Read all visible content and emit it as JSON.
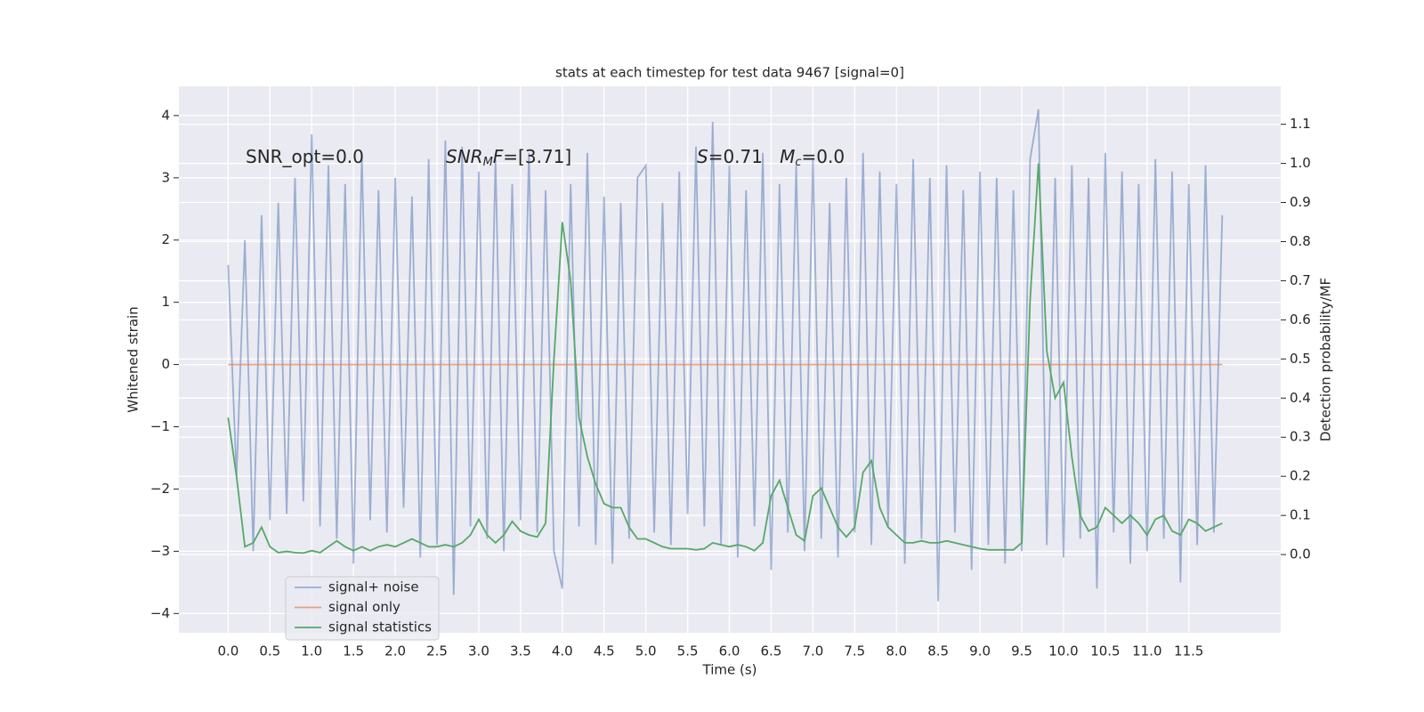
{
  "chart_data": {
    "type": "line",
    "title": "stats at each timestep for test data 9467 [signal=0]",
    "xlabel": "Time (s)",
    "ylabel": "Whitened strain",
    "y2label": "Detection probability/MF",
    "annotations": [
      [
        "SNR_opt=0.0"
      ],
      [
        "SNR",
        "M",
        "F",
        "=[3.71]"
      ],
      [
        "S",
        "=0.71   ",
        "M",
        "c",
        "=0.0"
      ]
    ],
    "x": [
      0.0,
      0.1,
      0.2,
      0.3,
      0.4,
      0.5,
      0.6,
      0.7,
      0.8,
      0.9,
      1.0,
      1.1,
      1.2,
      1.3,
      1.4,
      1.5,
      1.6,
      1.7,
      1.8,
      1.9,
      2.0,
      2.1,
      2.2,
      2.3,
      2.4,
      2.5,
      2.6,
      2.7,
      2.8,
      2.9,
      3.0,
      3.1,
      3.2,
      3.3,
      3.4,
      3.5,
      3.6,
      3.7,
      3.8,
      3.9,
      4.0,
      4.1,
      4.2,
      4.3,
      4.4,
      4.5,
      4.6,
      4.7,
      4.8,
      4.9,
      5.0,
      5.1,
      5.2,
      5.3,
      5.4,
      5.5,
      5.6,
      5.7,
      5.8,
      5.9,
      6.0,
      6.1,
      6.2,
      6.3,
      6.4,
      6.5,
      6.6,
      6.7,
      6.8,
      6.9,
      7.0,
      7.1,
      7.2,
      7.3,
      7.4,
      7.5,
      7.6,
      7.7,
      7.8,
      7.9,
      8.0,
      8.1,
      8.2,
      8.3,
      8.4,
      8.5,
      8.6,
      8.7,
      8.8,
      8.9,
      9.0,
      9.1,
      9.2,
      9.3,
      9.4,
      9.5,
      9.6,
      9.7,
      9.8,
      9.9,
      10.0,
      10.1,
      10.2,
      10.3,
      10.4,
      10.5,
      10.6,
      10.7,
      10.8,
      10.9,
      11.0,
      11.1,
      11.2,
      11.3,
      11.4,
      11.5,
      11.6,
      11.7,
      11.8,
      11.9
    ],
    "series": [
      {
        "name": "signal+ noise",
        "color": "#4c72b0",
        "opacity": 0.5,
        "axis": "y",
        "values": [
          1.6,
          -1.8,
          2.0,
          -3.0,
          2.4,
          -2.5,
          2.6,
          -2.4,
          3.0,
          -2.2,
          3.7,
          -2.6,
          3.2,
          -2.8,
          2.9,
          -3.2,
          3.4,
          -2.5,
          2.8,
          -2.7,
          3.0,
          -2.3,
          2.7,
          -3.1,
          3.3,
          -2.9,
          3.6,
          -3.7,
          3.5,
          -2.6,
          3.1,
          -2.8,
          3.3,
          -3.0,
          2.9,
          -2.5,
          3.4,
          -2.7,
          2.8,
          -3.0,
          -3.6,
          2.9,
          -2.6,
          3.4,
          -2.9,
          2.7,
          -3.2,
          2.6,
          -2.8,
          3.0,
          3.2,
          -2.7,
          2.6,
          -2.9,
          3.1,
          -2.4,
          3.5,
          -2.6,
          3.9,
          -2.9,
          3.2,
          -3.1,
          2.8,
          -2.6,
          3.4,
          -3.3,
          2.9,
          -2.7,
          3.2,
          -3.0,
          3.3,
          -2.8,
          2.6,
          -3.1,
          3.0,
          -2.7,
          3.4,
          -2.9,
          3.1,
          -2.6,
          2.9,
          -3.2,
          3.3,
          -2.8,
          3.0,
          -3.8,
          3.2,
          -2.7,
          2.8,
          -3.3,
          3.1,
          -2.9,
          3.0,
          -3.2,
          2.8,
          -3.0,
          3.3,
          4.1,
          -2.9,
          3.0,
          -3.1,
          3.2,
          -2.8,
          3.0,
          -3.6,
          3.4,
          -2.7,
          3.1,
          -3.2,
          2.9,
          -3.0,
          3.3,
          -2.8,
          3.1,
          -3.5,
          2.9,
          -2.9,
          3.2,
          -2.7,
          2.4
        ]
      },
      {
        "name": "signal only",
        "color": "#dd8452",
        "opacity": 0.7,
        "axis": "y",
        "values": [
          0,
          0,
          0,
          0,
          0,
          0,
          0,
          0,
          0,
          0,
          0,
          0,
          0,
          0,
          0,
          0,
          0,
          0,
          0,
          0,
          0,
          0,
          0,
          0,
          0,
          0,
          0,
          0,
          0,
          0,
          0,
          0,
          0,
          0,
          0,
          0,
          0,
          0,
          0,
          0,
          0,
          0,
          0,
          0,
          0,
          0,
          0,
          0,
          0,
          0,
          0,
          0,
          0,
          0,
          0,
          0,
          0,
          0,
          0,
          0,
          0,
          0,
          0,
          0,
          0,
          0,
          0,
          0,
          0,
          0,
          0,
          0,
          0,
          0,
          0,
          0,
          0,
          0,
          0,
          0,
          0,
          0,
          0,
          0,
          0,
          0,
          0,
          0,
          0,
          0,
          0,
          0,
          0,
          0,
          0,
          0,
          0,
          0,
          0,
          0,
          0,
          0,
          0,
          0,
          0,
          0,
          0,
          0,
          0,
          0,
          0,
          0,
          0,
          0,
          0,
          0,
          0,
          0,
          0,
          0
        ]
      },
      {
        "name": "signal statistics",
        "color": "#55a868",
        "opacity": 1,
        "axis": "y2",
        "values": [
          0.35,
          0.2,
          0.02,
          0.03,
          0.07,
          0.02,
          0.005,
          0.008,
          0.005,
          0.004,
          0.01,
          0.005,
          0.02,
          0.035,
          0.02,
          0.01,
          0.02,
          0.01,
          0.02,
          0.025,
          0.02,
          0.03,
          0.04,
          0.03,
          0.02,
          0.02,
          0.025,
          0.02,
          0.03,
          0.05,
          0.09,
          0.05,
          0.03,
          0.05,
          0.085,
          0.06,
          0.05,
          0.045,
          0.08,
          0.5,
          0.85,
          0.7,
          0.35,
          0.25,
          0.18,
          0.13,
          0.12,
          0.12,
          0.07,
          0.04,
          0.04,
          0.03,
          0.02,
          0.015,
          0.015,
          0.015,
          0.012,
          0.015,
          0.03,
          0.025,
          0.02,
          0.025,
          0.02,
          0.01,
          0.03,
          0.15,
          0.19,
          0.12,
          0.05,
          0.035,
          0.15,
          0.17,
          0.12,
          0.07,
          0.045,
          0.07,
          0.21,
          0.24,
          0.12,
          0.07,
          0.05,
          0.03,
          0.03,
          0.035,
          0.03,
          0.03,
          0.035,
          0.03,
          0.025,
          0.02,
          0.015,
          0.012,
          0.012,
          0.012,
          0.012,
          0.03,
          0.65,
          1.0,
          0.52,
          0.4,
          0.44,
          0.25,
          0.1,
          0.06,
          0.07,
          0.12,
          0.1,
          0.08,
          0.1,
          0.08,
          0.05,
          0.09,
          0.1,
          0.06,
          0.05,
          0.09,
          0.08,
          0.06,
          0.07,
          0.08
        ]
      }
    ],
    "xlim": [
      -0.59,
      12.6
    ],
    "ylim": [
      -4.31,
      4.47
    ],
    "y2lim": [
      -0.2,
      1.197
    ],
    "xticks": [
      {
        "value": 0,
        "label": "0.0"
      },
      0.5,
      {
        "value": 1,
        "label": "1.0"
      },
      1.5,
      {
        "value": 2,
        "label": "2.0"
      },
      2.5,
      {
        "value": 3,
        "label": "3.0"
      },
      3.5,
      {
        "value": 4,
        "label": "4.0"
      },
      4.5,
      {
        "value": 5,
        "label": "5.0"
      },
      5.5,
      {
        "value": 6,
        "label": "6.0"
      },
      6.5,
      {
        "value": 7,
        "label": "7.0"
      },
      7.5,
      {
        "value": 8,
        "label": "8.0"
      },
      8.5,
      {
        "value": 9,
        "label": "9.0"
      },
      9.5,
      {
        "value": 10,
        "label": "10.0"
      },
      10.5,
      {
        "value": 11,
        "label": "11.0"
      },
      11.5
    ],
    "yticks": [
      {
        "value": -4,
        "label": "−4"
      },
      {
        "value": -3,
        "label": "−3"
      },
      {
        "value": -2,
        "label": "−2"
      },
      {
        "value": -1,
        "label": "−1"
      },
      0,
      1,
      2,
      3,
      4
    ],
    "y2ticks": [
      {
        "value": 0,
        "label": "0.0"
      },
      0.1,
      0.2,
      0.3,
      0.4,
      0.5,
      0.6,
      0.7,
      0.8,
      0.9,
      {
        "value": 1,
        "label": "1.0"
      },
      1.1
    ],
    "grid": true
  }
}
